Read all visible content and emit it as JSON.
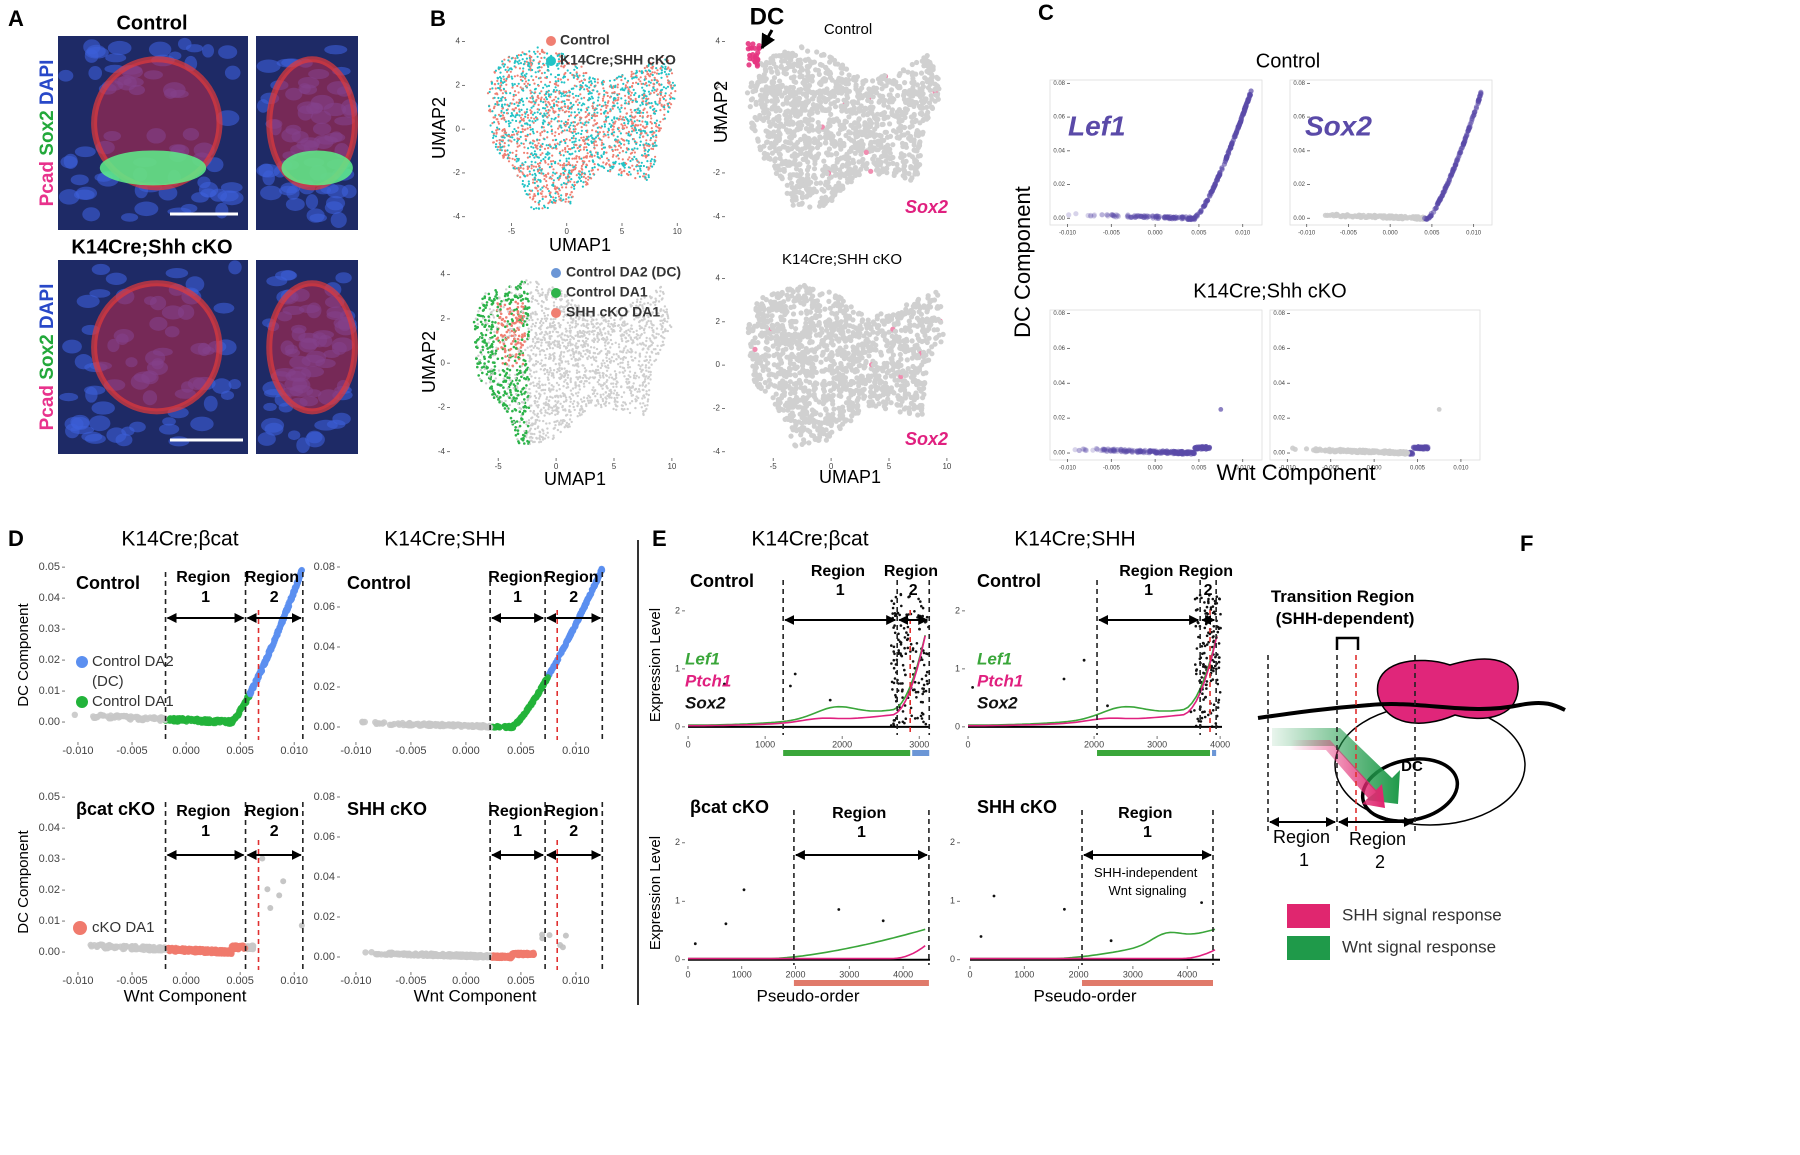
{
  "A": {
    "label": "A",
    "title_control": "Control",
    "title_cko": "K14Cre;Shh cKO",
    "stain": [
      "Pcad",
      "Sox2",
      "DAPI"
    ]
  },
  "B": {
    "label": "B",
    "x_label": "UMAP1",
    "y_label": "UMAP2",
    "xlim": [
      -8.3,
      10.7
    ],
    "ylim": [
      -4.15,
      4.3
    ],
    "xticks": [
      -5,
      0,
      5,
      10
    ],
    "yticks": [
      -4,
      -2,
      0,
      2,
      4
    ],
    "top_left": {
      "legend": [
        {
          "name": "Control",
          "color": "#f07f72"
        },
        {
          "name": "K14Cre;SHH cKO",
          "color": "#22c3c6"
        }
      ]
    },
    "top_right": {
      "arrow_label": "DC",
      "title": "Control",
      "gene": "Sox2"
    },
    "bottom_left": {
      "legend": [
        {
          "name": "Control DA2 (DC)",
          "color": "#6b96d6"
        },
        {
          "name": "Control DA1",
          "color": "#2db34a"
        },
        {
          "name": "SHH cKO DA1",
          "color": "#f07f72"
        }
      ]
    },
    "bottom_right": {
      "title": "K14Cre;SHH cKO",
      "gene": "Sox2"
    }
  },
  "C": {
    "label": "C",
    "title_control": "Control",
    "title_cko": "K14Cre;Shh cKO",
    "genes": [
      "Lef1",
      "Sox2"
    ],
    "gene_color": "#5a4aa8",
    "y_label": "DC Component",
    "x_label": "Wnt Component",
    "xlim": [
      -0.012,
      0.0122
    ],
    "ylim": [
      -0.004,
      0.082
    ],
    "xticks": [
      {
        "value": -0.01,
        "label": "-0.010"
      },
      {
        "value": -0.005,
        "label": "-0.005"
      },
      {
        "value": 0,
        "label": "0.000"
      },
      {
        "value": 0.005,
        "label": "0.005"
      },
      {
        "value": 0.01,
        "label": "0.010"
      }
    ],
    "yticks": [
      {
        "value": 0,
        "label": "0.00"
      },
      {
        "value": 0.02,
        "label": "0.02"
      },
      {
        "value": 0.04,
        "label": "0.04"
      },
      {
        "value": 0.06,
        "label": "0.06"
      },
      {
        "value": 0.08,
        "label": "0.08"
      }
    ]
  },
  "D": {
    "label": "D",
    "y_label": "DC Component",
    "x_label": "Wnt Component",
    "regions": [
      "Region 1",
      "Region 2"
    ],
    "xticks": [
      {
        "value": -0.01,
        "label": "-0.010"
      },
      {
        "value": -0.005,
        "label": "-0.005"
      },
      {
        "value": 0,
        "label": "0.000"
      },
      {
        "value": 0.005,
        "label": "0.005"
      },
      {
        "value": 0.01,
        "label": "0.010"
      }
    ],
    "columns": [
      {
        "title": "K14Cre;βcat",
        "xlim": [
          -0.0112,
          0.011
        ],
        "ylim": [
          -0.0058,
          0.0523
        ],
        "region_bounds": [
          -0.0019,
          0.0055,
          0.0108
        ],
        "threshold": 0.0067,
        "yticks": [
          {
            "value": 0,
            "label": "0.00"
          },
          {
            "value": 0.01,
            "label": "0.01"
          },
          {
            "value": 0.02,
            "label": "0.02"
          },
          {
            "value": 0.03,
            "label": "0.03"
          },
          {
            "value": 0.04,
            "label": "0.04"
          },
          {
            "value": 0.05,
            "label": "0.05"
          }
        ]
      },
      {
        "title": "K14Cre;SHH",
        "xlim": [
          -0.01145,
          0.0131
        ],
        "ylim": [
          -0.0065,
          0.0835
        ],
        "region_bounds": [
          0.0022,
          0.0072,
          0.0124
        ],
        "threshold": 0.0083,
        "yticks": [
          {
            "value": 0,
            "label": "0.00"
          },
          {
            "value": 0.02,
            "label": "0.02"
          },
          {
            "value": 0.04,
            "label": "0.04"
          },
          {
            "value": 0.06,
            "label": "0.06"
          },
          {
            "value": 0.08,
            "label": "0.08"
          }
        ]
      }
    ],
    "rows": [
      [
        "Control",
        "Control"
      ],
      [
        "βcat cKO",
        "SHH cKO"
      ]
    ],
    "legend_control": [
      {
        "name": "Control DA2 (DC)",
        "color": "#5b8ff0"
      },
      {
        "name": "Control DA1",
        "color": "#22b33a"
      }
    ],
    "legend_cko": [
      {
        "name": "cKO DA1",
        "color": "#f07a6d"
      }
    ]
  },
  "E": {
    "label": "E",
    "y_label": "Expression Level",
    "x_label": "Pseudo-order",
    "regions": [
      "Region 1",
      "Region 2"
    ],
    "note": "SHH-independent Wnt signaling",
    "ylim_control": [
      -0.14,
      2.36
    ],
    "ylim_cko": [
      -0.09,
      2.39
    ],
    "yticks": [
      0,
      1,
      2
    ],
    "genes": [
      {
        "name": "Lef1",
        "color": "#3aa63a"
      },
      {
        "name": "Ptch1",
        "color": "#e0207f"
      },
      {
        "name": "Sox2",
        "color": "#111111"
      }
    ],
    "region_colors": [
      "#3aa63a",
      "#6b96d6",
      "#e07a6a"
    ],
    "columns": [
      {
        "title": "K14Cre;βcat",
        "xlim": [
          -40,
          3140
        ],
        "xticks": [
          0,
          1000,
          2000,
          3000
        ],
        "region_bounds": [
          1234,
          2714,
          3130
        ],
        "threshold": 2883,
        "cko_xlim": [
          -55,
          4500
        ],
        "cko_xticks": [
          0,
          1000,
          2000,
          3000,
          4000
        ],
        "cko_bounds": [
          1970,
          4480
        ]
      },
      {
        "title": "K14Cre;SHH",
        "xlim": [
          -48,
          4030
        ],
        "xticks": [
          0,
          2000,
          3000,
          4000
        ],
        "region_bounds": [
          2047,
          3683,
          3937
        ],
        "threshold": 3840,
        "cko_xlim": [
          -184,
          4604
        ],
        "cko_xticks": [
          0,
          1000,
          2000,
          3000,
          4000
        ],
        "cko_bounds": [
          2063,
          4475
        ]
      }
    ],
    "rows": [
      [
        "Control",
        "Control"
      ],
      [
        "βcat cKO",
        "SHH cKO"
      ]
    ]
  },
  "F": {
    "label": "F",
    "title": "Transition Region (SHH-dependent)",
    "dc": "DC",
    "regions": [
      "Region 1",
      "Region 2"
    ],
    "legend": [
      {
        "name": "SHH signal response",
        "color": "#e0266f"
      },
      {
        "name": "Wnt signal response",
        "color": "#1f9a4a"
      }
    ]
  }
}
